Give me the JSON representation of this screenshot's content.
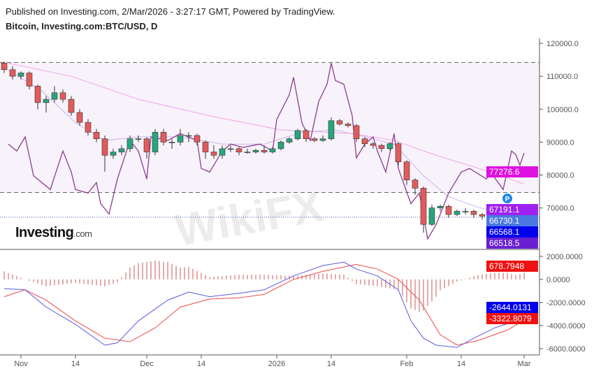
{
  "header": {
    "published": "Published on Investing.com, 2/Mar/2026 - 3:27:17 GMT, Powered by TradingView.",
    "symbol": "Bitcoin, Investing.com:BTC/USD, D"
  },
  "logo": {
    "text": "Investing",
    "suffix": ".com"
  },
  "watermark": "WikiFX",
  "marker": {
    "label": "P",
    "date": "2026-02-25",
    "color": "#1e88e5"
  },
  "colors": {
    "up": "#26a67a",
    "down": "#e25b5b",
    "overlay": "#8e3d8e",
    "ma_fast": "#c9b6e8",
    "ma_slow": "#f0a6e6",
    "macd": "#5a5ae0",
    "signal": "#f04848",
    "histogram": "#c85a5a"
  },
  "chart_data": [
    {
      "type": "candlestick",
      "ylim": [
        57400,
        121500
      ],
      "y_ticks": [
        "120000.0",
        "110000.0",
        "100000.0",
        "90000.0",
        "80000.0",
        "70000.0"
      ],
      "x_ticks": [
        {
          "label": "Nov",
          "date": "2025-11-01"
        },
        {
          "label": "14",
          "date": "2025-11-14"
        },
        {
          "label": "Dec",
          "date": "2025-12-01"
        },
        {
          "label": "14",
          "date": "2025-12-14"
        },
        {
          "label": "2026",
          "date": "2026-01-01"
        },
        {
          "label": "14",
          "date": "2026-01-14"
        },
        {
          "label": "Feb",
          "date": "2026-02-01"
        },
        {
          "label": "14",
          "date": "2026-02-14"
        },
        {
          "label": "Mar",
          "date": "2026-03-01"
        }
      ],
      "horizontal_lines": [
        114200,
        74700
      ],
      "current_price_line": 67191.1,
      "candles": [
        [
          "2025-10-28",
          114000,
          114500,
          111000,
          112000
        ],
        [
          "2025-10-30",
          112000,
          113000,
          109000,
          110000
        ],
        [
          "2025-11-01",
          110000,
          111500,
          109000,
          111000
        ],
        [
          "2025-11-03",
          111000,
          111500,
          106000,
          107000
        ],
        [
          "2025-11-05",
          107000,
          107500,
          100000,
          102000
        ],
        [
          "2025-11-07",
          102000,
          104000,
          99000,
          103000
        ],
        [
          "2025-11-09",
          103000,
          107000,
          102000,
          105000
        ],
        [
          "2025-11-11",
          105000,
          106000,
          102000,
          103000
        ],
        [
          "2025-11-13",
          103000,
          104000,
          98000,
          99000
        ],
        [
          "2025-11-15",
          99000,
          100000,
          95000,
          96000
        ],
        [
          "2025-11-17",
          96000,
          97000,
          92000,
          93000
        ],
        [
          "2025-11-19",
          93000,
          94000,
          90000,
          91000
        ],
        [
          "2025-11-21",
          91000,
          92000,
          81000,
          86000
        ],
        [
          "2025-11-23",
          86000,
          88000,
          85000,
          87000
        ],
        [
          "2025-11-25",
          87000,
          89000,
          86000,
          88000
        ],
        [
          "2025-11-27",
          88000,
          92000,
          87000,
          91000
        ],
        [
          "2025-11-29",
          91000,
          92000,
          90000,
          91000
        ],
        [
          "2025-12-01",
          91000,
          91500,
          85000,
          87000
        ],
        [
          "2025-12-03",
          87000,
          94000,
          86000,
          93000
        ],
        [
          "2025-12-05",
          93000,
          94000,
          89000,
          90000
        ],
        [
          "2025-12-07",
          90000,
          91000,
          88000,
          90000
        ],
        [
          "2025-12-09",
          90000,
          94000,
          89000,
          92000
        ],
        [
          "2025-12-11",
          92000,
          93000,
          90000,
          92000
        ],
        [
          "2025-12-13",
          92000,
          92500,
          89000,
          90000
        ],
        [
          "2025-12-15",
          90000,
          90500,
          85000,
          87000
        ],
        [
          "2025-12-17",
          87000,
          89000,
          85000,
          86000
        ],
        [
          "2025-12-19",
          86000,
          89000,
          85000,
          88000
        ],
        [
          "2025-12-21",
          88000,
          89000,
          87000,
          88000
        ],
        [
          "2025-12-23",
          88000,
          88500,
          86000,
          87000
        ],
        [
          "2025-12-25",
          87000,
          88000,
          86500,
          87000
        ],
        [
          "2025-12-27",
          87000,
          88000,
          86500,
          87500
        ],
        [
          "2025-12-29",
          87500,
          89000,
          86500,
          87000
        ],
        [
          "2025-12-31",
          87000,
          88500,
          86500,
          88000
        ],
        [
          "2026-01-02",
          88000,
          90500,
          87500,
          90000
        ],
        [
          "2026-01-04",
          90000,
          91500,
          89500,
          91000
        ],
        [
          "2026-01-06",
          91000,
          94000,
          90500,
          93500
        ],
        [
          "2026-01-08",
          93500,
          94000,
          90000,
          91000
        ],
        [
          "2026-01-10",
          91000,
          91500,
          90000,
          90500
        ],
        [
          "2026-01-12",
          90500,
          92000,
          90000,
          91000
        ],
        [
          "2026-01-14",
          91000,
          97500,
          90500,
          96500
        ],
        [
          "2026-01-16",
          96500,
          97000,
          95000,
          95500
        ],
        [
          "2026-01-18",
          95500,
          96000,
          94500,
          95000
        ],
        [
          "2026-01-20",
          95000,
          95500,
          90000,
          91000
        ],
        [
          "2026-01-22",
          91000,
          91500,
          88500,
          89500
        ],
        [
          "2026-01-24",
          89500,
          90000,
          88000,
          89000
        ],
        [
          "2026-01-26",
          89000,
          89500,
          87000,
          88000
        ],
        [
          "2026-01-28",
          88000,
          90000,
          87500,
          89500
        ],
        [
          "2026-01-30",
          89500,
          90000,
          83000,
          84000
        ],
        [
          "2026-02-01",
          84000,
          84500,
          77000,
          78500
        ],
        [
          "2026-02-03",
          78500,
          79000,
          74000,
          76000
        ],
        [
          "2026-02-05",
          76000,
          76500,
          62500,
          65000
        ],
        [
          "2026-02-07",
          65000,
          71000,
          64500,
          70000
        ],
        [
          "2026-02-09",
          70000,
          71000,
          69000,
          70500
        ],
        [
          "2026-02-11",
          70500,
          71000,
          67000,
          68000
        ],
        [
          "2026-02-13",
          68000,
          69500,
          67500,
          69000
        ],
        [
          "2026-02-15",
          69000,
          70000,
          68000,
          69000
        ],
        [
          "2026-02-17",
          69000,
          69500,
          67000,
          68000
        ],
        [
          "2026-02-19",
          68000,
          68500,
          66500,
          67500
        ],
        [
          "2026-02-21",
          67500,
          68500,
          67000,
          68000
        ],
        [
          "2026-02-23",
          68000,
          68500,
          63500,
          64500
        ],
        [
          "2026-02-25",
          64500,
          70000,
          64000,
          68000
        ],
        [
          "2026-02-27",
          68000,
          68500,
          64000,
          66000
        ],
        [
          "2026-03-01",
          66000,
          67500,
          65500,
          66700
        ]
      ],
      "overlay_line": [
        [
          "2025-10-29",
          89400
        ],
        [
          "2025-10-31",
          87300
        ],
        [
          "2025-11-02",
          91600
        ],
        [
          "2025-11-04",
          79800
        ],
        [
          "2025-11-08",
          75600
        ],
        [
          "2025-11-11",
          87300
        ],
        [
          "2025-11-13",
          80900
        ],
        [
          "2025-11-14",
          75600
        ],
        [
          "2025-11-17",
          74500
        ],
        [
          "2025-11-19",
          77700
        ],
        [
          "2025-11-20",
          71300
        ],
        [
          "2025-11-22",
          68200
        ],
        [
          "2025-11-24",
          78800
        ],
        [
          "2025-11-27",
          90500
        ],
        [
          "2025-11-29",
          87300
        ],
        [
          "2025-12-01",
          78800
        ],
        [
          "2025-12-02",
          91600
        ],
        [
          "2025-12-06",
          90500
        ],
        [
          "2025-12-09",
          92600
        ],
        [
          "2025-12-13",
          90500
        ],
        [
          "2025-12-14",
          82000
        ],
        [
          "2025-12-16",
          80900
        ],
        [
          "2025-12-19",
          87300
        ],
        [
          "2025-12-21",
          89400
        ],
        [
          "2025-12-24",
          88400
        ],
        [
          "2025-12-28",
          89400
        ],
        [
          "2025-12-31",
          87300
        ],
        [
          "2026-01-01",
          96900
        ],
        [
          "2026-01-04",
          104400
        ],
        [
          "2026-01-05",
          109700
        ],
        [
          "2026-01-07",
          95900
        ],
        [
          "2026-01-09",
          90500
        ],
        [
          "2026-01-11",
          102300
        ],
        [
          "2026-01-13",
          107600
        ],
        [
          "2026-01-14",
          114000
        ],
        [
          "2026-01-15",
          108700
        ],
        [
          "2026-01-17",
          107600
        ],
        [
          "2026-01-19",
          98000
        ],
        [
          "2026-01-20",
          85200
        ],
        [
          "2026-01-22",
          89400
        ],
        [
          "2026-01-24",
          91600
        ],
        [
          "2026-01-25",
          87300
        ],
        [
          "2026-01-27",
          80900
        ],
        [
          "2026-01-29",
          92600
        ],
        [
          "2026-01-30",
          82000
        ],
        [
          "2026-02-02",
          71300
        ],
        [
          "2026-02-04",
          74500
        ],
        [
          "2026-02-06",
          60600
        ],
        [
          "2026-02-08",
          64900
        ],
        [
          "2026-02-11",
          74500
        ],
        [
          "2026-02-14",
          80900
        ],
        [
          "2026-02-16",
          82000
        ],
        [
          "2026-02-20",
          78800
        ],
        [
          "2026-02-21",
          80900
        ],
        [
          "2026-02-24",
          75600
        ],
        [
          "2026-02-26",
          87300
        ],
        [
          "2026-02-27",
          86200
        ],
        [
          "2026-02-28",
          83000
        ],
        [
          "2026-03-01",
          86700
        ]
      ],
      "ma_fast": [
        [
          "2025-10-29",
          111900
        ],
        [
          "2025-11-06",
          105500
        ],
        [
          "2025-11-14",
          95900
        ],
        [
          "2025-11-21",
          90500
        ],
        [
          "2025-11-29",
          91600
        ],
        [
          "2025-12-09",
          91600
        ],
        [
          "2025-12-19",
          89400
        ],
        [
          "2025-12-29",
          89400
        ],
        [
          "2026-01-07",
          93000
        ],
        [
          "2026-01-15",
          93700
        ],
        [
          "2026-01-22",
          91600
        ],
        [
          "2026-01-29",
          89400
        ],
        [
          "2026-02-05",
          79800
        ],
        [
          "2026-02-11",
          73400
        ],
        [
          "2026-02-18",
          70200
        ],
        [
          "2026-02-25",
          68100
        ],
        [
          "2026-03-01",
          67191.1
        ]
      ],
      "ma_slow": [
        [
          "2025-10-29",
          114000
        ],
        [
          "2025-11-13",
          110000
        ],
        [
          "2025-11-29",
          103000
        ],
        [
          "2025-12-16",
          98000
        ],
        [
          "2026-01-02",
          93700
        ],
        [
          "2026-01-19",
          92600
        ],
        [
          "2026-01-29",
          90500
        ],
        [
          "2026-02-08",
          86000
        ],
        [
          "2026-02-21",
          80900
        ],
        [
          "2026-03-01",
          77276.6
        ]
      ],
      "labels": [
        {
          "text": "77276.6",
          "value": 77276.6,
          "color": "#e010e0"
        },
        {
          "text": "67191.1",
          "value": 67191.1,
          "color": "#a020f0"
        },
        {
          "text": "66730.1",
          "value": 66730.1,
          "color": "#4a78e0"
        },
        {
          "text": "66568.1",
          "value": 66568.1,
          "color": "#0000ee"
        },
        {
          "text": "66518.5",
          "value": 66518.5,
          "color": "#6a1fd0"
        }
      ]
    },
    {
      "type": "macd",
      "ylim": [
        -6550,
        2600
      ],
      "y_ticks": [
        "2000.0000",
        "0.0000",
        "-2000.0000",
        "-4000.0000",
        "-6000.0000"
      ],
      "macd": [
        [
          "2025-10-28",
          -800
        ],
        [
          "2025-11-02",
          -900
        ],
        [
          "2025-11-07",
          -2400
        ],
        [
          "2025-11-14",
          -3900
        ],
        [
          "2025-11-21",
          -5700
        ],
        [
          "2025-11-24",
          -5500
        ],
        [
          "2025-11-29",
          -3600
        ],
        [
          "2025-12-06",
          -1800
        ],
        [
          "2025-12-11",
          -1100
        ],
        [
          "2025-12-16",
          -1500
        ],
        [
          "2025-12-23",
          -1200
        ],
        [
          "2025-12-29",
          -900
        ],
        [
          "2026-01-05",
          300
        ],
        [
          "2026-01-12",
          1200
        ],
        [
          "2026-01-17",
          1500
        ],
        [
          "2026-01-20",
          900
        ],
        [
          "2026-01-25",
          300
        ],
        [
          "2026-01-30",
          -900
        ],
        [
          "2026-02-02",
          -3600
        ],
        [
          "2026-02-05",
          -5100
        ],
        [
          "2026-02-08",
          -5700
        ],
        [
          "2026-02-13",
          -5900
        ],
        [
          "2026-02-17",
          -5100
        ],
        [
          "2026-02-22",
          -4200
        ],
        [
          "2026-02-27",
          -3600
        ],
        [
          "2026-03-02",
          -2644.0131
        ]
      ],
      "signal": [
        [
          "2025-10-28",
          -1500
        ],
        [
          "2025-11-02",
          -900
        ],
        [
          "2025-11-07",
          -1800
        ],
        [
          "2025-11-14",
          -3600
        ],
        [
          "2025-11-21",
          -5100
        ],
        [
          "2025-11-27",
          -5400
        ],
        [
          "2025-12-03",
          -4200
        ],
        [
          "2025-12-09",
          -2400
        ],
        [
          "2025-12-16",
          -1700
        ],
        [
          "2025-12-23",
          -1600
        ],
        [
          "2025-12-29",
          -1300
        ],
        [
          "2026-01-05",
          0
        ],
        [
          "2026-01-12",
          700
        ],
        [
          "2026-01-20",
          1300
        ],
        [
          "2026-01-25",
          900
        ],
        [
          "2026-01-30",
          0
        ],
        [
          "2026-02-04",
          -1800
        ],
        [
          "2026-02-09",
          -4800
        ],
        [
          "2026-02-13",
          -5700
        ],
        [
          "2026-02-18",
          -5300
        ],
        [
          "2026-02-25",
          -4400
        ],
        [
          "2026-03-02",
          -3322.8079
        ]
      ],
      "labels": [
        {
          "text": "678.7948",
          "value": 678.7948,
          "color": "#ee1111"
        },
        {
          "text": "-2644.0131",
          "value": -2644.0131,
          "color": "#0000ee"
        },
        {
          "text": "-3322.8079",
          "value": -3322.8079,
          "color": "#ee1111"
        }
      ]
    }
  ]
}
